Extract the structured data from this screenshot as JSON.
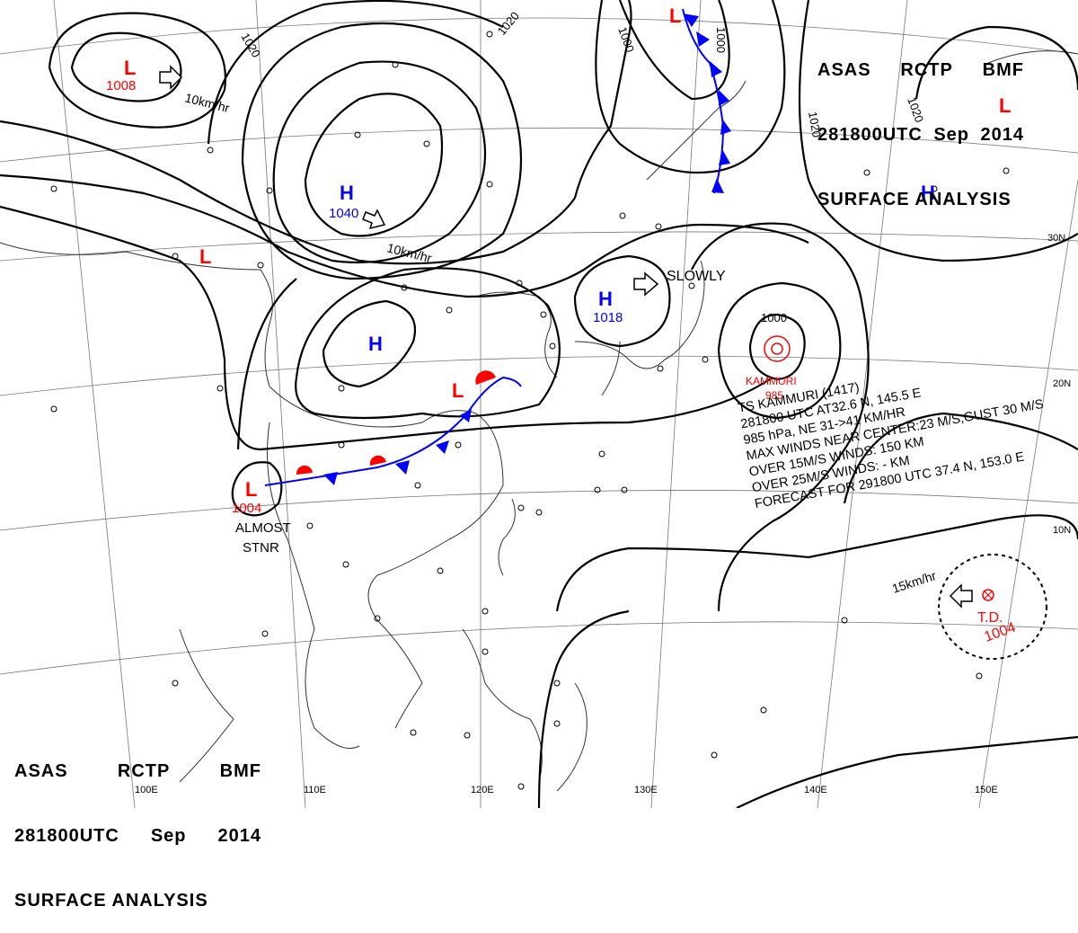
{
  "header": {
    "line1": [
      "ASAS",
      "RCTP",
      "BMF"
    ],
    "line2": [
      "281800UTC",
      "Sep",
      "2014"
    ],
    "line3": "SURFACE ANALYSIS"
  },
  "pressure_centers": [
    {
      "type": "L",
      "value": "1008"
    },
    {
      "type": "H",
      "value": "1040"
    },
    {
      "type": "L",
      "value": ""
    },
    {
      "type": "H",
      "value": ""
    },
    {
      "type": "H",
      "value": "1018"
    },
    {
      "type": "L",
      "value": ""
    },
    {
      "type": "L",
      "value": "1004"
    },
    {
      "type": "L",
      "value": ""
    },
    {
      "type": "H",
      "value": ""
    },
    {
      "type": "L",
      "value": ""
    }
  ],
  "typhoon": {
    "name": "KAMMURI",
    "pressure": "985"
  },
  "tropical_depression": {
    "label": "T.D.",
    "pressure": "1004",
    "motion": "15km/hr"
  },
  "motion_labels": {
    "low_nw": "10km/hr",
    "high_n": "10km/hr",
    "high_east": "SLOWLY",
    "low_sw_1": "ALMOST",
    "low_sw_2": "STNR"
  },
  "isobar_labels": [
    "1020",
    "1020",
    "1000",
    "1000",
    "1020",
    "1020",
    "1000"
  ],
  "storm_info": [
    "TS KAMMURI  (1417)",
    "281800 UTC  AT32.6 N, 145.5 E",
    "985 hPa, NE 31->41 KM/HR",
    "MAX WINDS NEAR CENTER:23 M/S,GUST 30 M/S",
    "OVER 15M/S WINDS: 150 KM",
    "OVER 25M/S WINDS: - KM",
    "FORECAST FOR 291800 UTC 37.4 N, 153.0 E"
  ],
  "longitude_labels": [
    "100E",
    "110E",
    "120E",
    "130E",
    "140E",
    "150E"
  ],
  "latitude_labels": [
    "30N",
    "20N",
    "10N"
  ],
  "colors": {
    "low": "#ff0000",
    "high": "#0000ff",
    "isobar": "#000000",
    "grid": "#666666"
  }
}
